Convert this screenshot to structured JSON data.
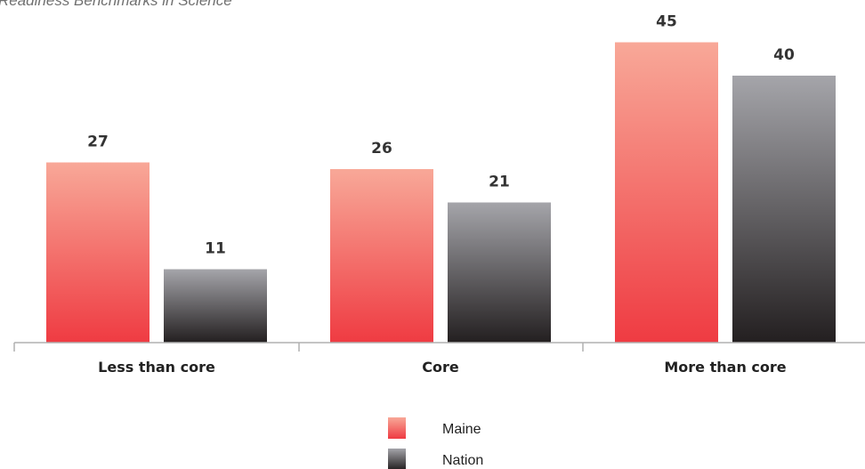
{
  "chart_data": {
    "type": "bar",
    "title": "Readiness Benchmarks in Science",
    "categories": [
      "Less than core",
      "Core",
      "More than core"
    ],
    "series": [
      {
        "name": "Maine",
        "values": [
          27,
          26,
          45
        ],
        "color_top": "#f8a898",
        "color_bottom": "#ef3b42"
      },
      {
        "name": "Nation",
        "values": [
          11,
          21,
          40
        ],
        "color_top": "#a5a5aa",
        "color_bottom": "#231f20"
      }
    ],
    "xlabel": "",
    "ylabel": "",
    "ylim": [
      0,
      50
    ],
    "grid": false,
    "legend_position": "bottom-center"
  }
}
